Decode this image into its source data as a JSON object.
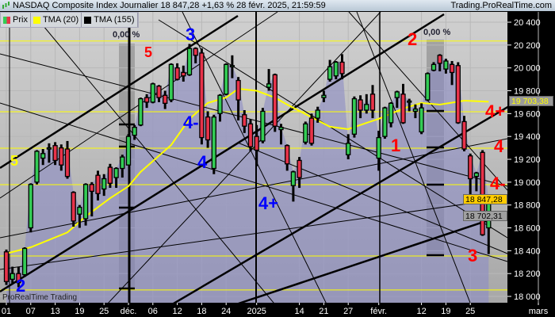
{
  "header": {
    "title": "NASDAQ Composite Index Journalier 18 847,28 +1,63 % 28 févr. 2025, 21:59:59",
    "site": "Trading.ProRealTime.com",
    "icon": "candlestick-icon"
  },
  "legend": [
    {
      "label": "Prix",
      "color": "#e8334a",
      "color2": "#33cc55"
    },
    {
      "label": "TMA (20)",
      "color": "#ffff00"
    },
    {
      "label": "TMA (155)",
      "color": "#000000"
    }
  ],
  "watermark": "ProRealTime Trading",
  "annotations": [
    {
      "text": "5",
      "color": "#ffff00"
    },
    {
      "text": "2",
      "color": "#0000ff"
    },
    {
      "text": "5",
      "color": "#ff0000"
    },
    {
      "text": "3",
      "color": "#0000ff"
    },
    {
      "text": "4-",
      "color": "#0000ff"
    },
    {
      "text": "4",
      "color": "#0000ff"
    },
    {
      "text": "4+",
      "color": "#0000ff"
    },
    {
      "text": "1",
      "color": "#ff0000"
    },
    {
      "text": "2",
      "color": "#ff0000"
    },
    {
      "text": "4+",
      "color": "#ff0000"
    },
    {
      "text": "4",
      "color": "#ff0000"
    },
    {
      "text": "4-",
      "color": "#ff0000"
    },
    {
      "text": "3",
      "color": "#ff0000"
    }
  ],
  "percent_labels": [
    "0,00 %",
    "0,00 %"
  ],
  "price_badges": [
    {
      "text": "19 703,38",
      "bg": "#9a9a9a",
      "fg": "#ffff00"
    },
    {
      "text": "18 847,28",
      "bg": "#ffcc00",
      "fg": "#000000"
    },
    {
      "text": "18 702,31",
      "bg": "#a0a0a0",
      "fg": "#000000"
    }
  ],
  "chart_data": {
    "type": "candlestick",
    "ylim": [
      18000,
      20400
    ],
    "y_ticks": [
      "20 400",
      "20 200",
      "20 000",
      "19 800",
      "19 600",
      "19 400",
      "19 200",
      "19 000",
      "18 800",
      "18 600",
      "18 400",
      "18 200",
      "18 000"
    ],
    "y_tick_values": [
      20400,
      20200,
      20000,
      19800,
      19600,
      19400,
      19200,
      19000,
      18800,
      18600,
      18400,
      18200,
      18000
    ],
    "x_ticks": [
      {
        "label": "01",
        "date": "2024-11-01"
      },
      {
        "label": "07",
        "date": "2024-11-07"
      },
      {
        "label": "13",
        "date": "2024-11-13"
      },
      {
        "label": "19",
        "date": "2024-11-19"
      },
      {
        "label": "25",
        "date": "2024-11-25"
      },
      {
        "label": "déc.",
        "date": "2024-12-02"
      },
      {
        "label": "06",
        "date": "2024-12-06"
      },
      {
        "label": "12",
        "date": "2024-12-12"
      },
      {
        "label": "18",
        "date": "2024-12-18"
      },
      {
        "label": "24",
        "date": "2024-12-24"
      },
      {
        "label": "2025",
        "date": "2025-01-02"
      },
      {
        "label": "14",
        "date": "2025-01-14"
      },
      {
        "label": "21",
        "date": "2025-01-21"
      },
      {
        "label": "27",
        "date": "2025-01-27"
      },
      {
        "label": "févr.",
        "date": "2025-02-03"
      },
      {
        "label": "12",
        "date": "2025-02-12"
      },
      {
        "label": "19",
        "date": "2025-02-19"
      },
      {
        "label": "25",
        "date": "2025-02-25"
      },
      {
        "label": "mars",
        "date": "2025-03-03"
      }
    ],
    "grid": true,
    "up_color": "#33cc55",
    "down_color": "#e8334a",
    "area_color": "#9c9cc8",
    "horizontal_levels": [
      20235,
      19616,
      19297,
      18978,
      18354,
      18056
    ],
    "dates": [
      "2024-11-01",
      "2024-11-04",
      "2024-11-05",
      "2024-11-06",
      "2024-11-07",
      "2024-11-08",
      "2024-11-11",
      "2024-11-12",
      "2024-11-13",
      "2024-11-14",
      "2024-11-15",
      "2024-11-18",
      "2024-11-19",
      "2024-11-20",
      "2024-11-21",
      "2024-11-22",
      "2024-11-25",
      "2024-11-26",
      "2024-11-27",
      "2024-11-29",
      "2024-12-02",
      "2024-12-03",
      "2024-12-04",
      "2024-12-05",
      "2024-12-06",
      "2024-12-09",
      "2024-12-10",
      "2024-12-11",
      "2024-12-12",
      "2024-12-13",
      "2024-12-16",
      "2024-12-17",
      "2024-12-18",
      "2024-12-19",
      "2024-12-20",
      "2024-12-23",
      "2024-12-24",
      "2024-12-26",
      "2024-12-27",
      "2024-12-30",
      "2024-12-31",
      "2025-01-02",
      "2025-01-03",
      "2025-01-06",
      "2025-01-07",
      "2025-01-08",
      "2025-01-10",
      "2025-01-13",
      "2025-01-14",
      "2025-01-15",
      "2025-01-16",
      "2025-01-17",
      "2025-01-21",
      "2025-01-22",
      "2025-01-23",
      "2025-01-24",
      "2025-01-27",
      "2025-01-28",
      "2025-01-29",
      "2025-01-30",
      "2025-01-31",
      "2025-02-03",
      "2025-02-04",
      "2025-02-05",
      "2025-02-06",
      "2025-02-07",
      "2025-02-10",
      "2025-02-11",
      "2025-02-12",
      "2025-02-13",
      "2025-02-14",
      "2025-02-18",
      "2025-02-19",
      "2025-02-20",
      "2025-02-21",
      "2025-02-24",
      "2025-02-25",
      "2025-02-26",
      "2025-02-27",
      "2025-02-28"
    ],
    "ohlc": [
      [
        18390,
        18410,
        18100,
        18130
      ],
      [
        18150,
        18260,
        18110,
        18200
      ],
      [
        18200,
        18260,
        18080,
        18120
      ],
      [
        18190,
        18430,
        18170,
        18420
      ],
      [
        18600,
        18990,
        18560,
        18980
      ],
      [
        19000,
        19280,
        18980,
        19270
      ],
      [
        19210,
        19290,
        19150,
        19250
      ],
      [
        19290,
        19340,
        19170,
        19300
      ],
      [
        19320,
        19350,
        19150,
        19190
      ],
      [
        19300,
        19330,
        19100,
        19150
      ],
      [
        19290,
        19360,
        19030,
        19050
      ],
      [
        18910,
        18920,
        18610,
        18660
      ],
      [
        18720,
        18800,
        18600,
        18780
      ],
      [
        18680,
        18990,
        18620,
        18980
      ],
      [
        18980,
        19000,
        18700,
        18920
      ],
      [
        19060,
        19100,
        18840,
        18900
      ],
      [
        18940,
        19070,
        18880,
        19030
      ],
      [
        19130,
        19160,
        18950,
        18990
      ],
      [
        19040,
        19130,
        18950,
        19120
      ],
      [
        19120,
        19240,
        19040,
        19220
      ],
      [
        19150,
        19420,
        19150,
        19400
      ],
      [
        19410,
        19500,
        19370,
        19480
      ],
      [
        19500,
        19740,
        19490,
        19730
      ],
      [
        19740,
        19770,
        19650,
        19700
      ],
      [
        19700,
        19870,
        19690,
        19860
      ],
      [
        19840,
        19850,
        19700,
        19740
      ],
      [
        19760,
        19800,
        19640,
        19690
      ],
      [
        19720,
        20040,
        19700,
        20030
      ],
      [
        20000,
        20040,
        19890,
        19900
      ],
      [
        19960,
        20020,
        19880,
        19930
      ],
      [
        19940,
        20210,
        19930,
        20170
      ],
      [
        20170,
        20180,
        20040,
        20110
      ],
      [
        20130,
        20170,
        19330,
        19390
      ],
      [
        19570,
        19620,
        19300,
        19370
      ],
      [
        19120,
        19590,
        19070,
        19570
      ],
      [
        19600,
        19770,
        19530,
        19760
      ],
      [
        19770,
        20040,
        19760,
        20030
      ],
      [
        20010,
        20110,
        19910,
        20020
      ],
      [
        19890,
        19920,
        19540,
        19720
      ],
      [
        19590,
        19630,
        19430,
        19490
      ],
      [
        19510,
        19550,
        19270,
        19310
      ],
      [
        19400,
        19500,
        19140,
        19280
      ],
      [
        19360,
        19650,
        19340,
        19620
      ],
      [
        19830,
        19990,
        19800,
        19860
      ],
      [
        19940,
        19950,
        19440,
        19490
      ],
      [
        19460,
        19510,
        19330,
        19480
      ],
      [
        19320,
        19330,
        19100,
        19160
      ],
      [
        18970,
        19100,
        18830,
        19090
      ],
      [
        19190,
        19220,
        18950,
        19040
      ],
      [
        19350,
        19530,
        19330,
        19510
      ],
      [
        19560,
        19600,
        19320,
        19340
      ],
      [
        19560,
        19660,
        19520,
        19630
      ],
      [
        19740,
        19800,
        19700,
        19760
      ],
      [
        19900,
        20070,
        19880,
        20010
      ],
      [
        19930,
        20060,
        19900,
        20050
      ],
      [
        20050,
        20120,
        19900,
        19950
      ],
      [
        19240,
        19420,
        19200,
        19340
      ],
      [
        19420,
        19750,
        19390,
        19730
      ],
      [
        19720,
        19760,
        19560,
        19630
      ],
      [
        19630,
        19770,
        19600,
        19680
      ],
      [
        19770,
        19850,
        19560,
        19630
      ],
      [
        19210,
        19450,
        19100,
        19390
      ],
      [
        19400,
        19660,
        19380,
        19650
      ],
      [
        19520,
        19700,
        19480,
        19690
      ],
      [
        19740,
        19800,
        19650,
        19790
      ],
      [
        19770,
        19860,
        19510,
        19520
      ],
      [
        19700,
        19730,
        19620,
        19710
      ],
      [
        19620,
        19680,
        19560,
        19640
      ],
      [
        19440,
        19690,
        19420,
        19650
      ],
      [
        19720,
        19960,
        19710,
        19950
      ],
      [
        19980,
        20050,
        19970,
        20030
      ],
      [
        20110,
        20120,
        19970,
        20040
      ],
      [
        19990,
        20080,
        19950,
        20060
      ],
      [
        20030,
        20060,
        19850,
        19960
      ],
      [
        20020,
        20050,
        19510,
        19520
      ],
      [
        19530,
        19580,
        19270,
        19290
      ],
      [
        19230,
        19250,
        18840,
        19030
      ],
      [
        19050,
        19090,
        18920,
        19080
      ],
      [
        19260,
        19280,
        18530,
        18540
      ],
      [
        18600,
        18860,
        18370,
        18850
      ]
    ],
    "series": [
      {
        "name": "TMA (20)",
        "color": "#ffff00",
        "points": [
          [
            "2024-11-01",
            18375
          ],
          [
            "2024-11-07",
            18430
          ],
          [
            "2024-11-15",
            18560
          ],
          [
            "2024-11-20",
            18700
          ],
          [
            "2024-11-26",
            18860
          ],
          [
            "2024-12-02",
            18964
          ],
          [
            "2024-12-04",
            19090
          ],
          [
            "2024-12-11",
            19325
          ],
          [
            "2024-12-16",
            19554
          ],
          [
            "2024-12-19",
            19693
          ],
          [
            "2024-12-24",
            19741
          ],
          [
            "2024-12-27",
            19817
          ],
          [
            "2025-01-02",
            19800
          ],
          [
            "2025-01-07",
            19740
          ],
          [
            "2025-01-10",
            19679
          ],
          [
            "2025-01-16",
            19568
          ],
          [
            "2025-01-22",
            19485
          ],
          [
            "2025-01-27",
            19464
          ],
          [
            "2025-01-30",
            19519
          ],
          [
            "2025-02-03",
            19554
          ],
          [
            "2025-02-07",
            19644
          ],
          [
            "2025-02-12",
            19693
          ],
          [
            "2025-02-18",
            19679
          ],
          [
            "2025-02-24",
            19713
          ],
          [
            "2025-02-28",
            19703.38
          ]
        ]
      }
    ]
  }
}
